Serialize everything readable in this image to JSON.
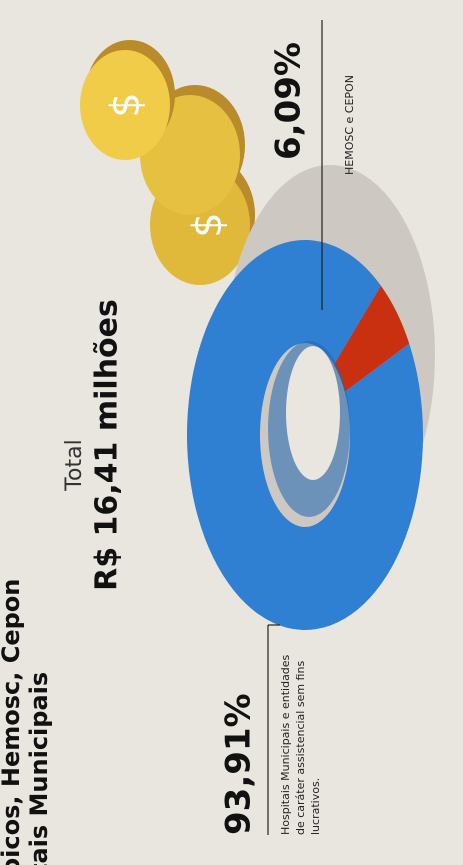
{
  "chart_data": {
    "type": "pie",
    "title": [
      "picos, Hemosc, Cepon",
      "tais Municipais"
    ],
    "total_label": "Total",
    "total_value": "R$ 16,41 milhões",
    "categories": [
      "Hospitais Municipais e entidades de caráter assistencial sem fins lucrativos.",
      "HEMOSC e CEPON"
    ],
    "values": [
      93.91,
      6.09
    ],
    "value_labels": [
      "93,91%",
      "6,09%"
    ],
    "colors": [
      "#2f7fd2",
      "#c8300f"
    ]
  }
}
